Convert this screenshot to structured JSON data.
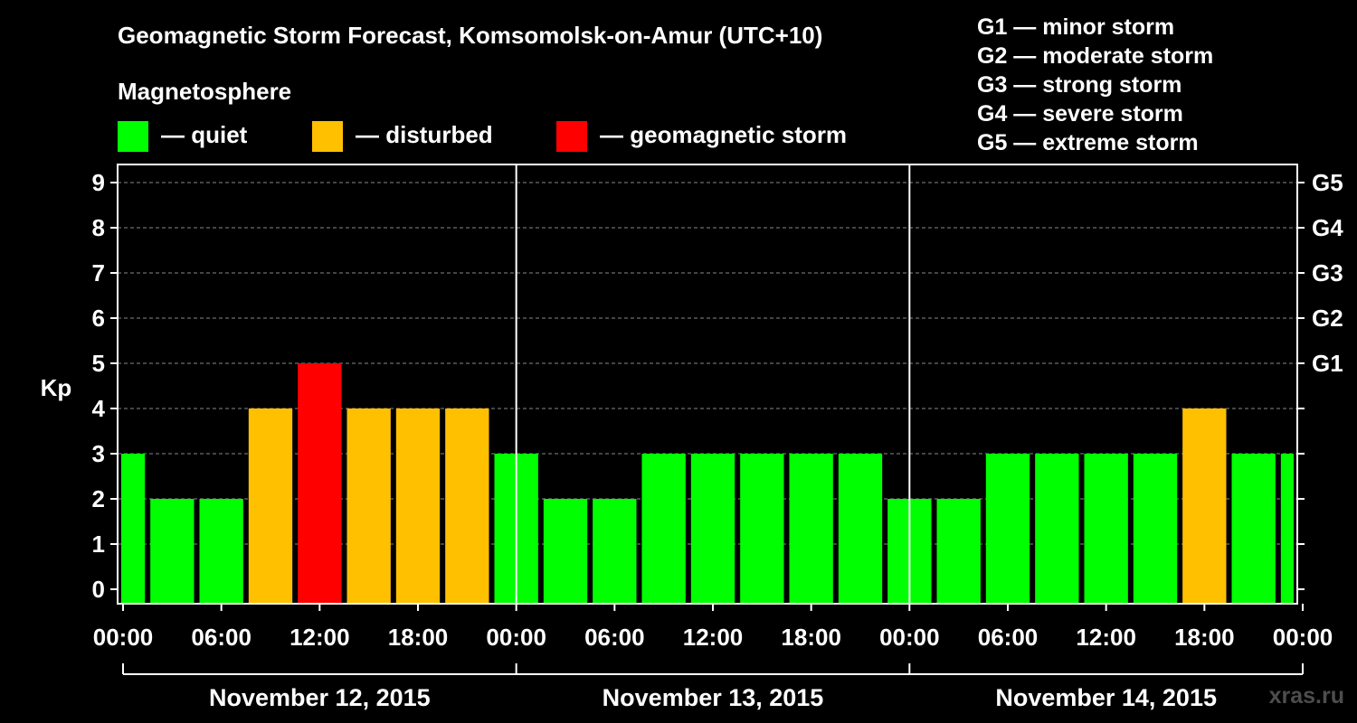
{
  "title": "Geomagnetic Storm Forecast, Komsomolsk-on-Amur (UTC+10)",
  "magnetosphere_label": "Magnetosphere",
  "legend": [
    {
      "label": "— quiet",
      "color": "#00ff00"
    },
    {
      "label": "— disturbed",
      "color": "#ffc000"
    },
    {
      "label": "— geomagnetic storm",
      "color": "#ff0000"
    }
  ],
  "g_legend": [
    "G1 — minor storm",
    "G2 — moderate storm",
    "G3 — strong storm",
    "G4 — severe storm",
    "G5 — extreme storm"
  ],
  "watermark": "xras.ru",
  "chart_data": {
    "type": "bar",
    "title": "Geomagnetic Storm Forecast, Komsomolsk-on-Amur (UTC+10)",
    "ylabel": "Kp",
    "ylim": [
      0,
      9
    ],
    "y_ticks": [
      "0",
      "1",
      "2",
      "3",
      "4",
      "5",
      "6",
      "7",
      "8",
      "9"
    ],
    "g_levels": [
      {
        "label": "G1",
        "kp": 5
      },
      {
        "label": "G2",
        "kp": 6
      },
      {
        "label": "G3",
        "kp": 7
      },
      {
        "label": "G4",
        "kp": 8
      },
      {
        "label": "G5",
        "kp": 9
      }
    ],
    "x_ticks": [
      "00:00",
      "06:00",
      "12:00",
      "18:00",
      "00:00",
      "06:00",
      "12:00",
      "18:00",
      "00:00",
      "06:00",
      "12:00",
      "18:00",
      "00:00"
    ],
    "days": [
      "November 12, 2015",
      "November 13, 2015",
      "November 14, 2015"
    ],
    "interval_hours": 3,
    "values": [
      3,
      2,
      2,
      4,
      5,
      4,
      4,
      4,
      3,
      2,
      2,
      3,
      3,
      3,
      3,
      3,
      2,
      2,
      3,
      3,
      3,
      3,
      4,
      3,
      3
    ],
    "colors": {
      "quiet": "#00ff00",
      "disturbed": "#ffc000",
      "storm": "#ff0000"
    }
  }
}
